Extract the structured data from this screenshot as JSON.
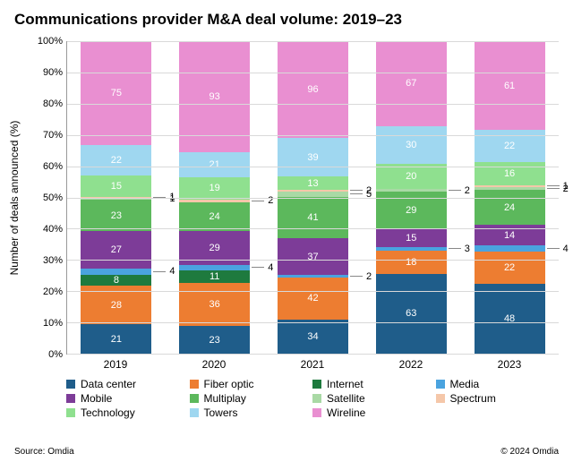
{
  "title": "Communications provider M&A deal volume: 2019–23",
  "ylabel": "Number of deals announced (%)",
  "ylim": [
    0,
    100
  ],
  "ytick_step": 10,
  "ytick_suffix": "%",
  "bar_width_pct": 72,
  "categories": [
    "2019",
    "2020",
    "2021",
    "2022",
    "2023"
  ],
  "series_order": [
    "Data center",
    "Fiber optic",
    "Internet",
    "Media",
    "Mobile",
    "Multiplay",
    "Satellite",
    "Spectrum",
    "Technology",
    "Towers",
    "Wireline"
  ],
  "colors": {
    "Data center": "#1f5d8a",
    "Fiber optic": "#ed7d31",
    "Internet": "#1e7a3e",
    "Media": "#4aa3df",
    "Mobile": "#7d3c98",
    "Multiplay": "#5cb85c",
    "Satellite": "#a9d9a5",
    "Spectrum": "#f5c7a9",
    "Technology": "#8fe08f",
    "Towers": "#9fd7f0",
    "Wireline": "#e98fd1"
  },
  "stacks": [
    {
      "Data center": 21,
      "Fiber optic": 28,
      "Internet": 8,
      "Media": 4,
      "Mobile": 27,
      "Multiplay": 23,
      "Satellite": 1,
      "Spectrum": 1,
      "Technology": 15,
      "Towers": 22,
      "Wireline": 75
    },
    {
      "Data center": 23,
      "Fiber optic": 36,
      "Internet": 11,
      "Media": 4,
      "Mobile": 29,
      "Multiplay": 24,
      "Satellite": 0,
      "Spectrum": 2,
      "Technology": 19,
      "Towers": 21,
      "Wireline": 93
    },
    {
      "Data center": 34,
      "Fiber optic": 42,
      "Internet": 0,
      "Media": 2,
      "Mobile": 37,
      "Multiplay": 41,
      "Satellite": 5,
      "Spectrum": 2,
      "Technology": 13,
      "Towers": 39,
      "Wireline": 96
    },
    {
      "Data center": 63,
      "Fiber optic": 18,
      "Internet": 0,
      "Media": 3,
      "Mobile": 15,
      "Multiplay": 29,
      "Satellite": 2,
      "Spectrum": 0,
      "Technology": 20,
      "Towers": 30,
      "Wireline": 67
    },
    {
      "Data center": 48,
      "Fiber optic": 22,
      "Internet": 0,
      "Media": 4,
      "Mobile": 14,
      "Multiplay": 24,
      "Satellite": 2,
      "Spectrum": 1,
      "Technology": 16,
      "Towers": 22,
      "Wireline": 61
    }
  ],
  "side_label_threshold": 6,
  "footer": {
    "source": "Source: Omdia",
    "copyright": "© 2024 Omdia"
  },
  "background_color": "#ffffff",
  "grid_color": "#d9d9d9",
  "axis_color": "#999999",
  "title_fontsize": 17,
  "label_fontsize": 12,
  "tick_fontsize": 11,
  "segment_fontsize": 11,
  "legend_fontsize": 12,
  "footer_fontsize": 10
}
